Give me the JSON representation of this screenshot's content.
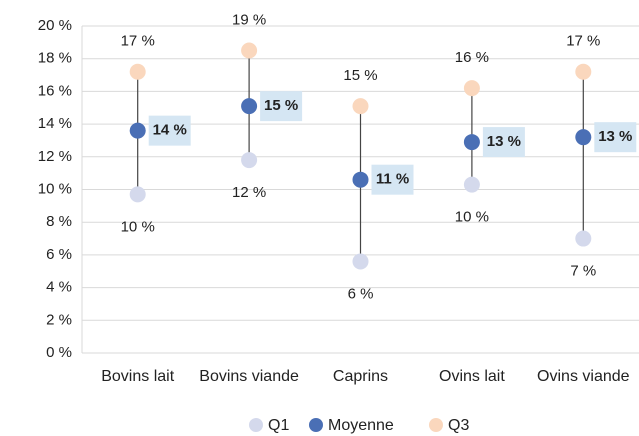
{
  "chart_data": {
    "type": "range-dot",
    "categories": [
      "Bovins lait",
      "Bovins viande",
      "Caprins",
      "Ovins lait",
      "Ovins viande"
    ],
    "series": [
      {
        "name": "Q1",
        "color": "#d4d9ec",
        "values": [
          9.7,
          11.8,
          5.6,
          10.3,
          7.0
        ],
        "value_labels": [
          "10 %",
          "12 %",
          "6 %",
          "10 %",
          "7 %"
        ]
      },
      {
        "name": "Moyenne",
        "color": "#4a6fb5",
        "values": [
          13.6,
          15.1,
          10.6,
          12.9,
          13.2
        ],
        "value_labels": [
          "14 %",
          "15 %",
          "11 %",
          "13 %",
          "13 %"
        ]
      },
      {
        "name": "Q3",
        "color": "#fad7bd",
        "values": [
          17.2,
          18.5,
          15.1,
          16.2,
          17.2
        ],
        "value_labels": [
          "17 %",
          "19 %",
          "15 %",
          "16 %",
          "17 %"
        ]
      }
    ],
    "ylim": [
      0,
      20
    ],
    "yticks": [
      {
        "value": 0,
        "label": "0 %"
      },
      {
        "value": 2,
        "label": "2 %"
      },
      {
        "value": 4,
        "label": "4 %"
      },
      {
        "value": 6,
        "label": "6 %"
      },
      {
        "value": 8,
        "label": "8 %"
      },
      {
        "value": 10,
        "label": "10 %"
      },
      {
        "value": 12,
        "label": "12 %"
      },
      {
        "value": 14,
        "label": "14 %"
      },
      {
        "value": 16,
        "label": "16 %"
      },
      {
        "value": 18,
        "label": "18 %"
      },
      {
        "value": 20,
        "label": "20 %"
      }
    ],
    "grid": true,
    "legend": "bottom"
  }
}
